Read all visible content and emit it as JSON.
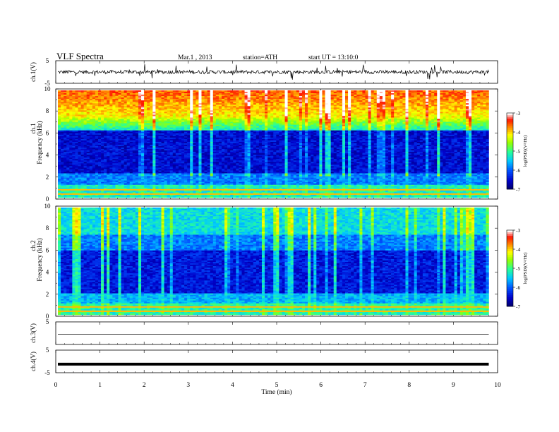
{
  "header": {
    "title": "VLF Spectra",
    "date": "Mar.1 , 2013",
    "station": "station=ATH",
    "start": "start UT = 13:10:0"
  },
  "chart_data": [
    {
      "type": "line",
      "panel": "ch1-waveform",
      "ylabel": "ch.1(V)",
      "ylim": [
        -5,
        5
      ],
      "yticks": [
        "5",
        "-5"
      ],
      "description_values": {
        "baseline": 0,
        "amplitude_typical": 1,
        "spikes_max": 4
      }
    },
    {
      "type": "heatmap",
      "panel": "ch1-spectrogram",
      "ylabel": "ch.1",
      "ylabel2": "Frequency (kHz)",
      "ylim": [
        0,
        10
      ],
      "yticks": [
        "0",
        "2",
        "4",
        "6",
        "8",
        "10"
      ],
      "colorbar": {
        "label": "log(PSD)(V²/Hz)",
        "range": [
          -7,
          -3
        ],
        "ticks": [
          "-3",
          "-4",
          "-5",
          "-6",
          "-7"
        ],
        "colors": [
          "#000060",
          "#0000e0",
          "#0070ff",
          "#00d8ff",
          "#30ff80",
          "#c8ff00",
          "#ffff00",
          "#ff9000",
          "#ff2000",
          "#ffffff"
        ]
      }
    },
    {
      "type": "heatmap",
      "panel": "ch2-spectrogram",
      "ylabel": "ch.2",
      "ylabel2": "Frequency (kHz)",
      "ylim": [
        0,
        10
      ],
      "yticks": [
        "0",
        "2",
        "4",
        "6",
        "8",
        "10"
      ],
      "colorbar": {
        "label": "log(PSD)(V²/Hz)",
        "range": [
          -7,
          -3
        ],
        "ticks": [
          "-3",
          "-4",
          "-5",
          "-6",
          "-7"
        ]
      }
    },
    {
      "type": "line",
      "panel": "ch3-waveform",
      "ylabel": "ch.3(V)",
      "ylim": [
        -5,
        5
      ],
      "yticks": [
        "5",
        ""
      ],
      "values": {
        "constant": -0.5
      }
    },
    {
      "type": "line",
      "panel": "ch4-waveform",
      "ylabel": "ch.4(V)",
      "ylim": [
        -5,
        5
      ],
      "yticks": [
        "5",
        "-5"
      ],
      "values": {
        "constant": -1.2
      }
    }
  ],
  "xaxis": {
    "label": "Time (min)",
    "range": [
      0,
      10
    ],
    "data_end": 9.8,
    "ticks": [
      "0",
      "1",
      "2",
      "3",
      "4",
      "5",
      "6",
      "7",
      "8",
      "9",
      "10"
    ]
  }
}
